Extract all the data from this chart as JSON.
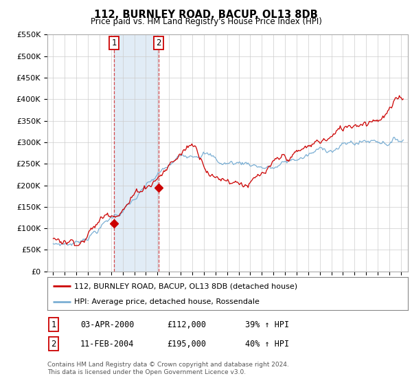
{
  "title": "112, BURNLEY ROAD, BACUP, OL13 8DB",
  "subtitle": "Price paid vs. HM Land Registry's House Price Index (HPI)",
  "ylim": [
    0,
    550000
  ],
  "yticks": [
    0,
    50000,
    100000,
    150000,
    200000,
    250000,
    300000,
    350000,
    400000,
    450000,
    500000,
    550000
  ],
  "hpi_color": "#7bafd4",
  "property_color": "#cc0000",
  "transaction1": {
    "date": "03-APR-2000",
    "price": 112000,
    "pct": "39%",
    "label": "1",
    "year": 2000.25
  },
  "transaction2": {
    "date": "11-FEB-2004",
    "price": 195000,
    "pct": "40%",
    "label": "2",
    "year": 2004.1
  },
  "legend_property": "112, BURNLEY ROAD, BACUP, OL13 8DB (detached house)",
  "legend_hpi": "HPI: Average price, detached house, Rossendale",
  "footnote1": "Contains HM Land Registry data © Crown copyright and database right 2024.",
  "footnote2": "This data is licensed under the Open Government Licence v3.0.",
  "background_color": "#ffffff",
  "grid_color": "#cccccc",
  "shade_color": "#dce9f5"
}
